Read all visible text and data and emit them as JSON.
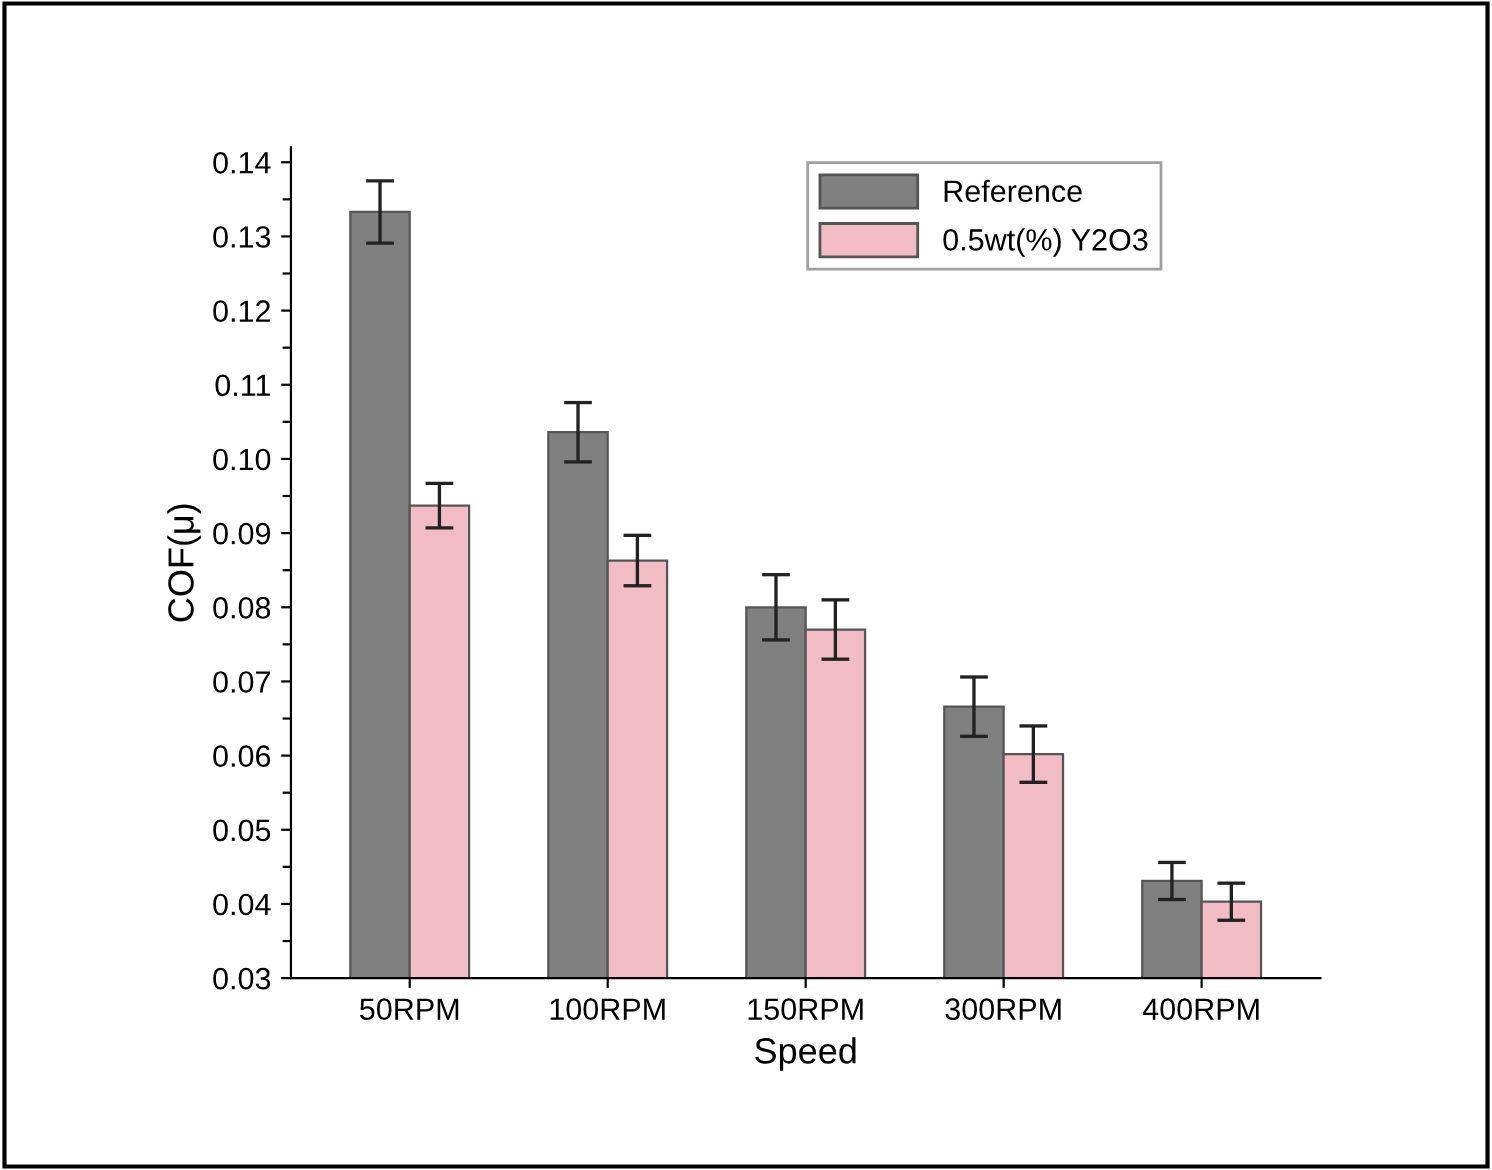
{
  "chart_data": {
    "type": "bar",
    "xlabel": "Speed",
    "ylabel": "COF(μ)",
    "categories": [
      "50RPM",
      "100RPM",
      "150RPM",
      "300RPM",
      "400RPM"
    ],
    "series": [
      {
        "name": "Reference",
        "color": "#808080",
        "values": [
          0.1333,
          0.1036,
          0.08,
          0.0666,
          0.0431
        ],
        "errors": [
          0.0042,
          0.004,
          0.0044,
          0.004,
          0.0025
        ]
      },
      {
        "name": "0.5wt(%) Y2O3",
        "color": "#f2bcc5",
        "values": [
          0.0937,
          0.0863,
          0.077,
          0.0602,
          0.0403
        ],
        "errors": [
          0.003,
          0.0034,
          0.004,
          0.0038,
          0.0025
        ]
      }
    ],
    "ylim": [
      0.03,
      0.142
    ],
    "yticks": [
      {
        "value": 0.03,
        "label": "0.03"
      },
      {
        "value": 0.035,
        "label": null
      },
      {
        "value": 0.04,
        "label": "0.04"
      },
      {
        "value": 0.045,
        "label": null
      },
      {
        "value": 0.05,
        "label": "0.05"
      },
      {
        "value": 0.055,
        "label": null
      },
      {
        "value": 0.06,
        "label": "0.06"
      },
      {
        "value": 0.065,
        "label": null
      },
      {
        "value": 0.07,
        "label": "0.07"
      },
      {
        "value": 0.075,
        "label": null
      },
      {
        "value": 0.08,
        "label": "0.08"
      },
      {
        "value": 0.085,
        "label": null
      },
      {
        "value": 0.09,
        "label": "0.09"
      },
      {
        "value": 0.095,
        "label": null
      },
      {
        "value": 0.1,
        "label": "0.10"
      },
      {
        "value": 0.105,
        "label": null
      },
      {
        "value": 0.11,
        "label": "0.11"
      },
      {
        "value": 0.115,
        "label": null
      },
      {
        "value": 0.12,
        "label": "0.12"
      },
      {
        "value": 0.125,
        "label": null
      },
      {
        "value": 0.13,
        "label": "0.13"
      },
      {
        "value": 0.135,
        "label": null
      },
      {
        "value": 0.14,
        "label": "0.14"
      }
    ],
    "legend": "top right",
    "grid": false
  }
}
